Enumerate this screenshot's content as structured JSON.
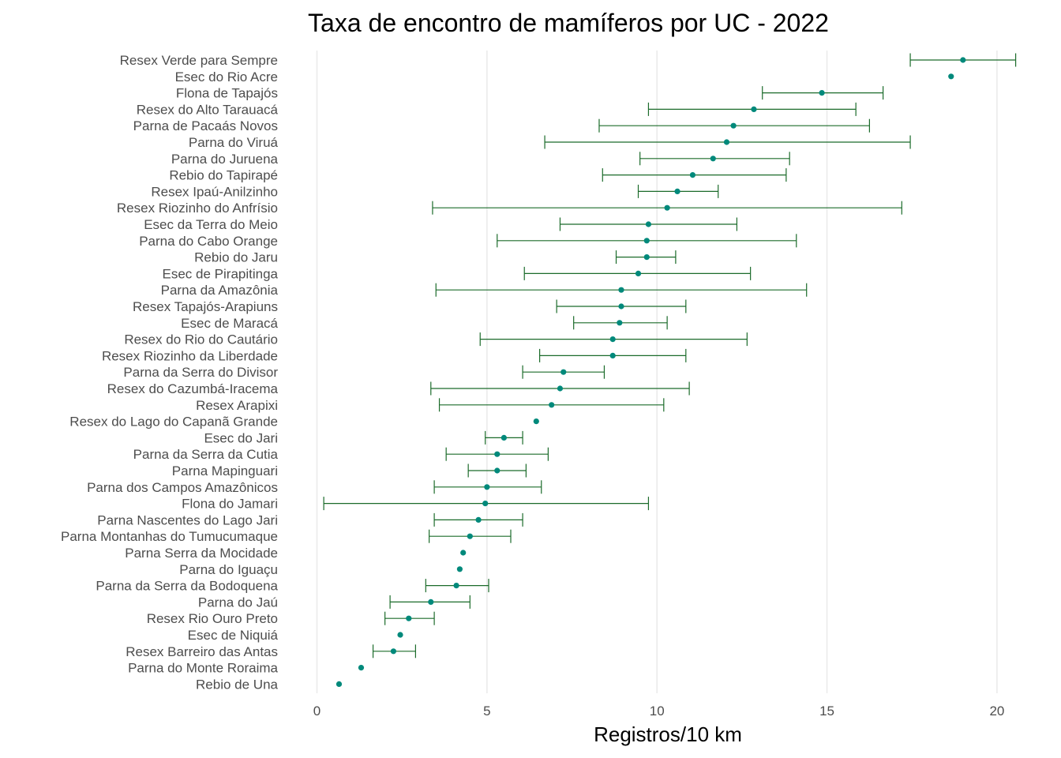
{
  "chart_data": {
    "type": "scatter",
    "variant": "dot-with-error-bars",
    "title": "Taxa de encontro de mamíferos por UC - 2022",
    "xlabel": "Registros/10 km",
    "ylabel": "",
    "xlim": [
      -0.4,
      20.6
    ],
    "xticks": [
      0,
      5,
      10,
      15,
      20
    ],
    "grid": "vertical major",
    "point_color": "#00897B",
    "errorbar_color": "#1B6B2A",
    "rows": [
      {
        "label": "Resex Verde para Sempre",
        "value": 19.0,
        "low": 17.45,
        "high": 20.55
      },
      {
        "label": "Esec do Rio Acre",
        "value": 18.65,
        "low": null,
        "high": null
      },
      {
        "label": "Flona de Tapajós",
        "value": 14.85,
        "low": 13.1,
        "high": 16.65
      },
      {
        "label": "Resex do Alto Tarauacá",
        "value": 12.85,
        "low": 9.75,
        "high": 15.85
      },
      {
        "label": "Parna de Pacaás Novos",
        "value": 12.25,
        "low": 8.3,
        "high": 16.25
      },
      {
        "label": "Parna do Viruá",
        "value": 12.05,
        "low": 6.7,
        "high": 17.45
      },
      {
        "label": "Parna do Juruena",
        "value": 11.65,
        "low": 9.5,
        "high": 13.9
      },
      {
        "label": "Rebio do Tapirapé",
        "value": 11.05,
        "low": 8.4,
        "high": 13.8
      },
      {
        "label": "Resex Ipaú-Anilzinho",
        "value": 10.6,
        "low": 9.45,
        "high": 11.8
      },
      {
        "label": "Resex Riozinho do Anfrísio",
        "value": 10.3,
        "low": 3.4,
        "high": 17.2
      },
      {
        "label": "Esec da Terra do Meio",
        "value": 9.75,
        "low": 7.15,
        "high": 12.35
      },
      {
        "label": "Parna do Cabo Orange",
        "value": 9.7,
        "low": 5.3,
        "high": 14.1
      },
      {
        "label": "Rebio do Jaru",
        "value": 9.7,
        "low": 8.8,
        "high": 10.55
      },
      {
        "label": "Esec de Pirapitinga",
        "value": 9.45,
        "low": 6.1,
        "high": 12.75
      },
      {
        "label": "Parna da Amazônia",
        "value": 8.95,
        "low": 3.5,
        "high": 14.4
      },
      {
        "label": "Resex Tapajós-Arapiuns",
        "value": 8.95,
        "low": 7.05,
        "high": 10.85
      },
      {
        "label": "Esec de Maracá",
        "value": 8.9,
        "low": 7.55,
        "high": 10.3
      },
      {
        "label": "Resex do Rio do Cautário",
        "value": 8.7,
        "low": 4.8,
        "high": 12.65
      },
      {
        "label": "Resex Riozinho da Liberdade",
        "value": 8.7,
        "low": 6.55,
        "high": 10.85
      },
      {
        "label": "Parna da Serra do Divisor",
        "value": 7.25,
        "low": 6.05,
        "high": 8.45
      },
      {
        "label": "Resex do Cazumbá-Iracema",
        "value": 7.15,
        "low": 3.35,
        "high": 10.95
      },
      {
        "label": "Resex Arapixi",
        "value": 6.9,
        "low": 3.6,
        "high": 10.2
      },
      {
        "label": "Resex do Lago do Capanã Grande",
        "value": 6.45,
        "low": null,
        "high": null
      },
      {
        "label": "Esec do Jari",
        "value": 5.5,
        "low": 4.95,
        "high": 6.05
      },
      {
        "label": "Parna da Serra da Cutia",
        "value": 5.3,
        "low": 3.8,
        "high": 6.8
      },
      {
        "label": "Parna Mapinguari",
        "value": 5.3,
        "low": 4.45,
        "high": 6.15
      },
      {
        "label": "Parna dos Campos Amazônicos",
        "value": 5.0,
        "low": 3.45,
        "high": 6.6
      },
      {
        "label": "Flona do Jamari",
        "value": 4.95,
        "low": 0.2,
        "high": 9.75
      },
      {
        "label": "Parna Nascentes do Lago Jari",
        "value": 4.75,
        "low": 3.45,
        "high": 6.05
      },
      {
        "label": "Parna Montanhas do Tumucumaque",
        "value": 4.5,
        "low": 3.3,
        "high": 5.7
      },
      {
        "label": "Parna Serra da Mocidade",
        "value": 4.3,
        "low": null,
        "high": null
      },
      {
        "label": "Parna do Iguaçu",
        "value": 4.2,
        "low": null,
        "high": null
      },
      {
        "label": "Parna da Serra da Bodoquena",
        "value": 4.1,
        "low": 3.2,
        "high": 5.05
      },
      {
        "label": "Parna do Jaú",
        "value": 3.35,
        "low": 2.15,
        "high": 4.5
      },
      {
        "label": "Resex Rio Ouro Preto",
        "value": 2.7,
        "low": 2.0,
        "high": 3.45
      },
      {
        "label": "Esec de Niquiá",
        "value": 2.45,
        "low": null,
        "high": null
      },
      {
        "label": "Resex Barreiro das Antas",
        "value": 2.25,
        "low": 1.65,
        "high": 2.9
      },
      {
        "label": "Parna do Monte Roraima",
        "value": 1.3,
        "low": null,
        "high": null
      },
      {
        "label": "Rebio de Una",
        "value": 0.65,
        "low": null,
        "high": null
      }
    ]
  }
}
